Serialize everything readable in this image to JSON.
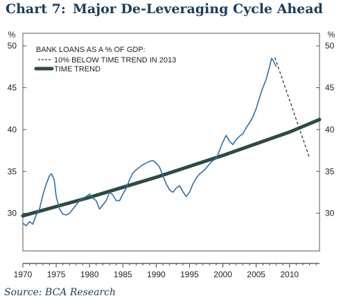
{
  "title": {
    "number": "Chart 7:",
    "text": "Major De-Leveraging Cycle Ahead"
  },
  "source": "Source: BCA Research",
  "chart_data": {
    "type": "line",
    "unit_label_left": "%",
    "unit_label_right": "%",
    "legend_title": "BANK LOANS AS A % OF GDP:",
    "legend_placement": "top-left",
    "x_ticks": [
      1970,
      1975,
      1980,
      1985,
      1990,
      1995,
      2000,
      2005,
      2010
    ],
    "y_ticks": [
      30,
      35,
      40,
      45,
      50
    ],
    "xlim": [
      1970,
      2014.5
    ],
    "ylim": [
      25.5,
      51.5
    ],
    "grid": false,
    "colors": {
      "series": "#2f6f9f",
      "trend": "#2e4a45",
      "projection": "#333333",
      "frame": "#555555"
    },
    "series": [
      {
        "name": "",
        "style": "thin-blue",
        "x": [
          1970.0,
          1970.5,
          1971.0,
          1971.5,
          1972.0,
          1972.5,
          1973.0,
          1973.5,
          1974.0,
          1974.3,
          1974.7,
          1975.0,
          1975.5,
          1976.0,
          1976.5,
          1977.0,
          1977.5,
          1978.0,
          1978.5,
          1979.0,
          1979.5,
          1980.0,
          1980.5,
          1981.0,
          1981.5,
          1982.0,
          1982.5,
          1983.0,
          1983.5,
          1984.0,
          1984.5,
          1985.0,
          1985.5,
          1986.0,
          1986.5,
          1987.0,
          1987.5,
          1988.0,
          1988.5,
          1989.0,
          1989.5,
          1990.0,
          1990.5,
          1991.0,
          1991.5,
          1992.0,
          1992.5,
          1993.0,
          1993.5,
          1994.0,
          1994.5,
          1995.0,
          1995.5,
          1996.0,
          1996.5,
          1997.0,
          1997.5,
          1998.0,
          1998.5,
          1999.0,
          1999.5,
          2000.0,
          2000.5,
          2001.0,
          2001.5,
          2002.0,
          2002.5,
          2003.0,
          2003.5,
          2004.0,
          2004.5,
          2005.0,
          2005.5,
          2006.0,
          2006.5,
          2007.0,
          2007.3,
          2007.6,
          2008.0
        ],
        "values": [
          28.8,
          28.5,
          29.0,
          28.7,
          29.8,
          30.5,
          32.2,
          33.5,
          34.5,
          34.7,
          34.0,
          32.0,
          30.5,
          29.9,
          29.8,
          30.0,
          30.5,
          31.0,
          31.5,
          31.8,
          32.0,
          32.3,
          31.8,
          31.5,
          30.5,
          31.0,
          31.5,
          32.5,
          32.2,
          31.5,
          31.5,
          32.3,
          33.0,
          34.0,
          34.8,
          35.2,
          35.5,
          35.8,
          36.0,
          36.2,
          36.3,
          36.0,
          35.5,
          34.5,
          33.5,
          32.8,
          32.5,
          33.0,
          33.3,
          32.6,
          32.0,
          32.5,
          33.5,
          34.2,
          34.7,
          35.0,
          35.4,
          35.9,
          36.3,
          36.5,
          37.5,
          38.5,
          39.3,
          38.6,
          38.2,
          38.8,
          39.2,
          39.5,
          40.2,
          40.8,
          41.5,
          42.5,
          43.8,
          45.0,
          46.0,
          47.5,
          48.5,
          48.2,
          47.5
        ]
      },
      {
        "name": "TIME TREND",
        "style": "thick-trend",
        "x": [
          1970,
          1975,
          1980,
          1985,
          1990,
          1995,
          2000,
          2005,
          2010,
          2014.5
        ],
        "values": [
          29.7,
          30.8,
          31.9,
          33.1,
          34.3,
          35.6,
          36.9,
          38.3,
          39.7,
          41.2
        ]
      },
      {
        "name": "10% BELOW TIME TREND IN 2013",
        "style": "dashed",
        "x": [
          2007.8,
          2013.0
        ],
        "values": [
          48.6,
          36.6
        ]
      }
    ]
  }
}
